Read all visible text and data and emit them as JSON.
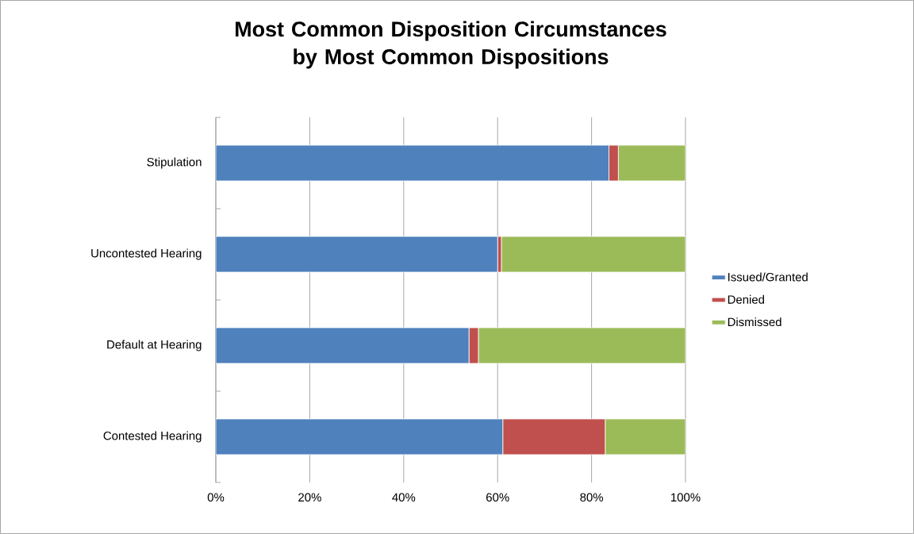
{
  "chart_data": {
    "type": "bar",
    "orientation": "horizontal",
    "stacked": true,
    "title": "Most Common Disposition Circumstances by Most Common Dispositions",
    "categories": [
      "Stipulation",
      "Uncontested Hearing",
      "Default at Hearing",
      "Contested Hearing"
    ],
    "series": [
      {
        "name": "Issued/Granted",
        "color": "#4f81bd",
        "values": [
          83.7,
          60,
          53.9,
          61.1
        ]
      },
      {
        "name": "Denied",
        "color": "#c0504d",
        "values": [
          2.0,
          0.8,
          2.0,
          21.8
        ]
      },
      {
        "name": "Dismissed",
        "color": "#9bbb59",
        "values": [
          14.3,
          39.2,
          44.1,
          17.1
        ]
      }
    ],
    "xlim": [
      0,
      100
    ],
    "xticks": [
      {
        "value": 0,
        "label": "0%"
      },
      {
        "value": 20,
        "label": "20%"
      },
      {
        "value": 40,
        "label": "40%"
      },
      {
        "value": 60,
        "label": "60%"
      },
      {
        "value": 80,
        "label": "80%"
      },
      {
        "value": 100,
        "label": "100%"
      }
    ],
    "grid": "x",
    "legend": "right"
  }
}
